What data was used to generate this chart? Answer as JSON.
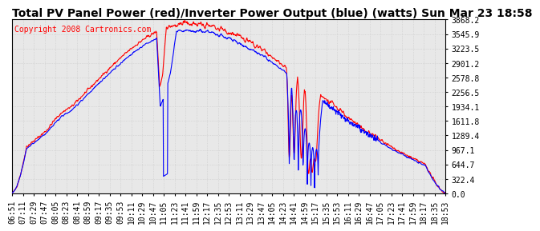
{
  "title": "Total PV Panel Power (red)/Inverter Power Output (blue) (watts) Sun Mar 23 18:58",
  "copyright_text": "Copyright 2008 Cartronics.com",
  "x_labels": [
    "06:51",
    "07:11",
    "07:29",
    "07:47",
    "08:05",
    "08:23",
    "08:41",
    "08:59",
    "09:17",
    "09:35",
    "09:53",
    "10:11",
    "10:29",
    "10:47",
    "11:05",
    "11:23",
    "11:41",
    "11:59",
    "12:17",
    "12:35",
    "12:53",
    "13:11",
    "13:29",
    "13:47",
    "14:05",
    "14:23",
    "14:41",
    "14:59",
    "15:17",
    "15:35",
    "15:53",
    "16:11",
    "16:29",
    "16:47",
    "17:05",
    "17:23",
    "17:41",
    "17:59",
    "18:17",
    "18:35",
    "18:53"
  ],
  "y_ticks": [
    0.0,
    322.4,
    644.7,
    967.1,
    1289.4,
    1611.8,
    1934.1,
    2256.5,
    2578.8,
    2901.2,
    3223.5,
    3545.9,
    3868.2
  ],
  "y_min": 0.0,
  "y_max": 3868.2,
  "pv_color": "#ff0000",
  "inv_color": "#0000ff",
  "grid_color": "#c8c8c8",
  "bg_color": "#ffffff",
  "plot_bg_color": "#e8e8e8",
  "title_fontsize": 10,
  "copyright_fontsize": 7,
  "tick_fontsize": 7,
  "line_width": 0.8
}
